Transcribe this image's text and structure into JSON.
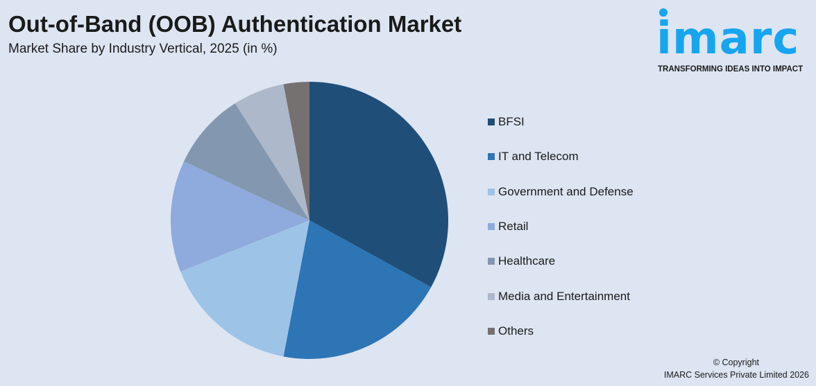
{
  "header": {
    "title": "Out-of-Band (OOB) Authentication Market",
    "subtitle": "Market Share by Industry Vertical, 2025 (in %)"
  },
  "logo": {
    "word": "imarc",
    "tagline": "TRANSFORMING IDEAS INTO IMPACT"
  },
  "footer": {
    "copyright": "© Copyright",
    "company": "IMARC Services Private Limited 2026"
  },
  "chart_data": {
    "type": "pie",
    "title": "Out-of-Band (OOB) Authentication Market",
    "subtitle": "Market Share by Industry Vertical, 2025 (in %)",
    "legend_position": "right",
    "categories": [
      "BFSI",
      "IT and Telecom",
      "Government and Defense",
      "Retail",
      "Healthcare",
      "Media and Entertainment",
      "Others"
    ],
    "values": [
      33,
      20,
      16,
      13,
      9,
      6,
      3
    ],
    "colors": [
      "#1f4e79",
      "#2e75b6",
      "#9dc3e6",
      "#8faadc",
      "#8497b0",
      "#adb9ca",
      "#767171"
    ]
  }
}
